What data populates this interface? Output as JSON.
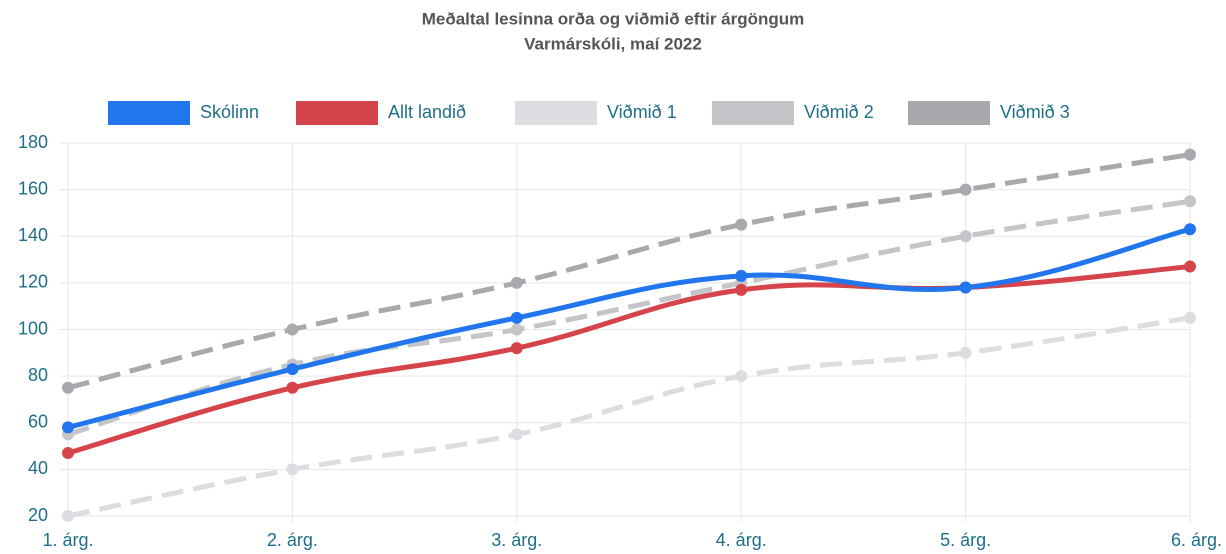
{
  "chart_data": {
    "type": "line",
    "title": "Meðaltal lesinna orða og viðmið eftir árgöngum",
    "subtitle": "Varmárskóli, maí 2022",
    "categories": [
      "1. árg.",
      "2. árg.",
      "3. árg.",
      "4. árg.",
      "5. árg.",
      "6. árg."
    ],
    "series": [
      {
        "name": "Skólinn",
        "color": "#2176ee",
        "dashed": false,
        "values": [
          58,
          83,
          105,
          123,
          118,
          143
        ]
      },
      {
        "name": "Allt landið",
        "color": "#d6444b",
        "dashed": false,
        "values": [
          47,
          75,
          92,
          117,
          118,
          127
        ]
      },
      {
        "name": "Viðmið 1",
        "color": "#dcdde1",
        "dashed": true,
        "values": [
          20,
          40,
          55,
          80,
          90,
          105
        ]
      },
      {
        "name": "Viðmið 2",
        "color": "#c4c5c9",
        "dashed": true,
        "values": [
          55,
          85,
          100,
          120,
          140,
          155
        ]
      },
      {
        "name": "Viðmið 3",
        "color": "#a8a9ad",
        "dashed": true,
        "values": [
          75,
          100,
          120,
          145,
          160,
          175
        ]
      }
    ],
    "ylim": [
      20,
      180
    ],
    "yticks": [
      20,
      40,
      60,
      80,
      100,
      120,
      140,
      160,
      180
    ],
    "grid": true,
    "legend": "top"
  }
}
